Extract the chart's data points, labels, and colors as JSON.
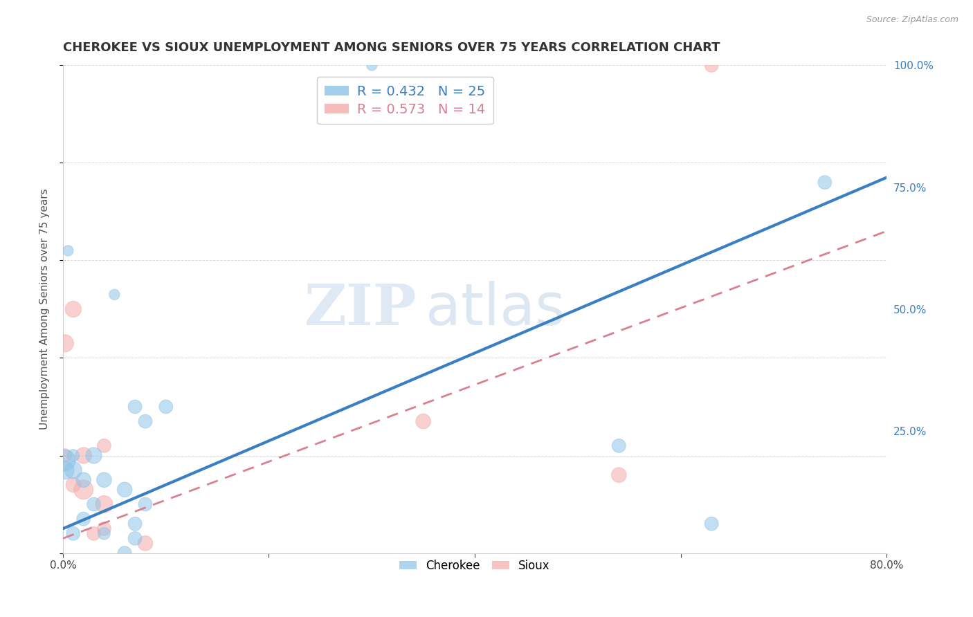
{
  "title": "CHEROKEE VS SIOUX UNEMPLOYMENT AMONG SENIORS OVER 75 YEARS CORRELATION CHART",
  "source": "Source: ZipAtlas.com",
  "xlabel": "",
  "ylabel": "Unemployment Among Seniors over 75 years",
  "xlim": [
    0.0,
    0.8
  ],
  "ylim": [
    0.0,
    1.0
  ],
  "xticks": [
    0.0,
    0.2,
    0.4,
    0.6,
    0.8
  ],
  "xticklabels": [
    "0.0%",
    "",
    "",
    "",
    "80.0%"
  ],
  "yticks": [
    0.0,
    0.25,
    0.5,
    0.75,
    1.0
  ],
  "yticklabels": [
    "",
    "25.0%",
    "50.0%",
    "75.0%",
    "100.0%"
  ],
  "cherokee_color": "#8ec4e8",
  "sioux_color": "#f4aaaa",
  "cherokee_line_color": "#3a7fc1",
  "sioux_line_color": "#d98090",
  "watermark_zip": "ZIP",
  "watermark_atlas": "atlas",
  "legend_cherokee": "R = 0.432   N = 25",
  "legend_sioux": "R = 0.573   N = 14",
  "cherokee_x": [
    0.3,
    0.005,
    0.05,
    0.07,
    0.03,
    0.01,
    0.002,
    0.002,
    0.01,
    0.02,
    0.04,
    0.06,
    0.08,
    0.1,
    0.08,
    0.01,
    0.04,
    0.07,
    0.02,
    0.03,
    0.63,
    0.74,
    0.54,
    0.06,
    0.07
  ],
  "cherokee_y": [
    1.0,
    0.62,
    0.53,
    0.3,
    0.2,
    0.2,
    0.19,
    0.17,
    0.17,
    0.15,
    0.15,
    0.13,
    0.27,
    0.3,
    0.1,
    0.04,
    0.04,
    0.06,
    0.07,
    0.1,
    0.06,
    0.76,
    0.22,
    0.0,
    0.03
  ],
  "cherokee_size": [
    30,
    30,
    30,
    50,
    70,
    40,
    120,
    90,
    80,
    60,
    60,
    60,
    50,
    50,
    50,
    50,
    40,
    50,
    50,
    50,
    50,
    50,
    50,
    50,
    50
  ],
  "sioux_x": [
    0.63,
    0.002,
    0.002,
    0.01,
    0.01,
    0.02,
    0.02,
    0.04,
    0.04,
    0.35,
    0.54,
    0.04,
    0.03,
    0.08
  ],
  "sioux_y": [
    1.0,
    0.43,
    0.2,
    0.5,
    0.14,
    0.2,
    0.13,
    0.22,
    0.1,
    0.27,
    0.16,
    0.05,
    0.04,
    0.02
  ],
  "sioux_size": [
    50,
    80,
    50,
    70,
    60,
    70,
    100,
    50,
    80,
    60,
    60,
    50,
    50,
    60
  ],
  "cherokee_line_x0": 0.0,
  "cherokee_line_y0": 0.05,
  "cherokee_line_x1": 0.8,
  "cherokee_line_y1": 0.77,
  "sioux_line_x0": 0.0,
  "sioux_line_y0": 0.03,
  "sioux_line_x1": 0.8,
  "sioux_line_y1": 0.66
}
